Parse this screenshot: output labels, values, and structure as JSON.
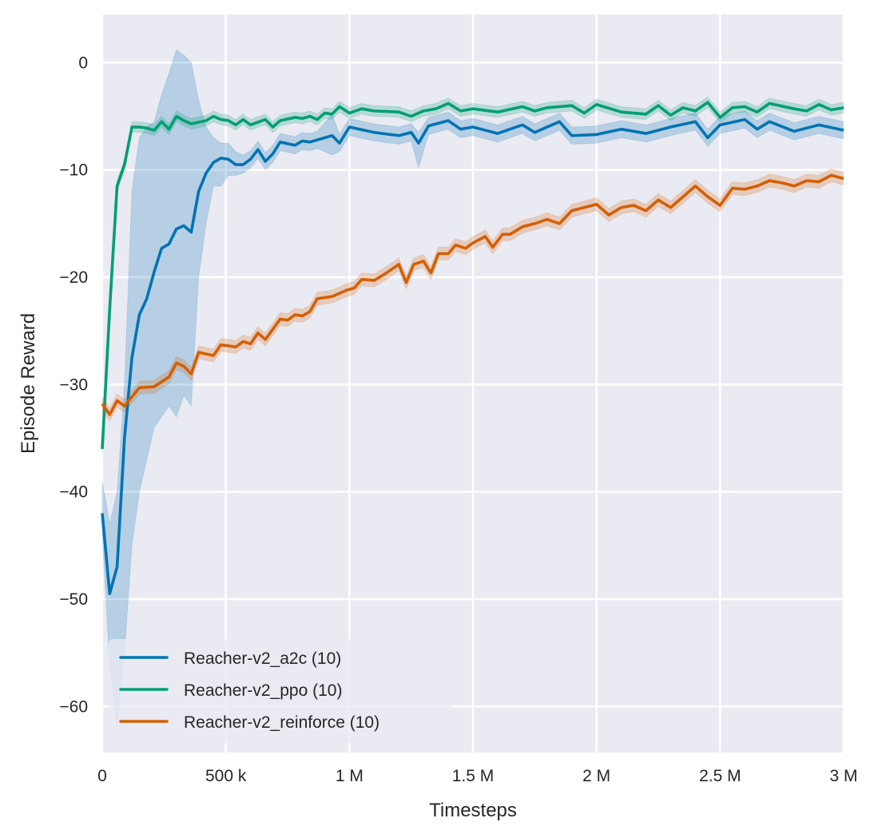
{
  "chart_data": {
    "type": "line",
    "title": "",
    "xlabel": "Timesteps",
    "ylabel": "Episode Reward",
    "xlim": [
      0,
      3000000
    ],
    "ylim": [
      -64.3,
      4.5
    ],
    "grid": true,
    "background": "#eaeaf2",
    "legend_placement": "lower-left",
    "xticks": [
      {
        "value": 0,
        "label": "0"
      },
      {
        "value": 500000,
        "label": "500 k"
      },
      {
        "value": 1000000,
        "label": "1 M"
      },
      {
        "value": 1500000,
        "label": "1.5 M"
      },
      {
        "value": 2000000,
        "label": "2 M"
      },
      {
        "value": 2500000,
        "label": "2.5 M"
      },
      {
        "value": 3000000,
        "label": "3 M"
      }
    ],
    "yticks": [
      {
        "value": 0,
        "label": "0"
      },
      {
        "value": -10,
        "label": "−10"
      },
      {
        "value": -20,
        "label": "−20"
      },
      {
        "value": -30,
        "label": "−30"
      },
      {
        "value": -40,
        "label": "−40"
      },
      {
        "value": -50,
        "label": "−50"
      },
      {
        "value": -60,
        "label": "−60"
      }
    ],
    "series": [
      {
        "name": "Reacher-v2_a2c (10)",
        "color": "#0173b2",
        "x": [
          0,
          30000,
          60000,
          90000,
          120000,
          150000,
          180000,
          210000,
          240000,
          270000,
          300000,
          330000,
          360000,
          390000,
          420000,
          450000,
          480000,
          510000,
          540000,
          570000,
          600000,
          630000,
          660000,
          690000,
          720000,
          780000,
          810000,
          840000,
          870000,
          930000,
          960000,
          1000000,
          1100000,
          1200000,
          1250000,
          1280000,
          1320000,
          1400000,
          1450000,
          1500000,
          1600000,
          1700000,
          1750000,
          1850000,
          1900000,
          2000000,
          2100000,
          2200000,
          2300000,
          2400000,
          2450000,
          2500000,
          2600000,
          2650000,
          2700000,
          2800000,
          2900000,
          3000000
        ],
        "y": [
          -42,
          -49.5,
          -47,
          -35,
          -27.5,
          -23.5,
          -22,
          -19.5,
          -17.3,
          -16.9,
          -15.5,
          -15.2,
          -15.8,
          -12,
          -10.3,
          -9.3,
          -8.9,
          -9,
          -9.5,
          -9.5,
          -9,
          -8.1,
          -9.2,
          -8.5,
          -7.4,
          -7.7,
          -7.3,
          -7.4,
          -7.2,
          -6.8,
          -7.5,
          -6,
          -6.5,
          -6.8,
          -6.5,
          -7.5,
          -5.9,
          -5.4,
          -6.2,
          -6,
          -6.6,
          -5.8,
          -6.5,
          -5.5,
          -6.8,
          -6.7,
          -6.2,
          -6.6,
          -6,
          -5.5,
          -7,
          -5.8,
          -5.3,
          -6.2,
          -5.5,
          -6.4,
          -5.8,
          -6.3
        ],
        "lower": [
          -44,
          -56,
          -62,
          -55,
          -45,
          -40,
          -37,
          -34,
          -33,
          -32,
          -33,
          -31,
          -32,
          -20,
          -15,
          -11.5,
          -11.5,
          -10.5,
          -10.5,
          -10.3,
          -9.8,
          -8.9,
          -10,
          -9.3,
          -8.2,
          -8.5,
          -8.1,
          -8.2,
          -8,
          -8.6,
          -8.3,
          -6.8,
          -7.3,
          -7.6,
          -7.3,
          -9.8,
          -6.7,
          -6.2,
          -7,
          -6.8,
          -7.4,
          -6.6,
          -7.3,
          -6.3,
          -7.6,
          -7.5,
          -7,
          -7.4,
          -6.8,
          -6.3,
          -7.8,
          -6.6,
          -6.1,
          -7,
          -6.3,
          -7.2,
          -6.6,
          -7.1
        ],
        "upper": [
          -39,
          -43,
          -40,
          -30,
          -12,
          -7,
          -6,
          -5.5,
          -3,
          -1,
          1.2,
          0.7,
          0,
          -3.5,
          -6,
          -7,
          -7.5,
          -7.5,
          -8.3,
          -8.6,
          -8.2,
          -7.3,
          -8.4,
          -7.7,
          -6.6,
          -6.9,
          -6.5,
          -6.6,
          -6.4,
          -4.8,
          -6.7,
          -5.2,
          -5.7,
          -6,
          -5.7,
          -6.5,
          -5.1,
          -4.6,
          -5.4,
          -5.2,
          -5.8,
          -5,
          -5.7,
          -4.7,
          -6,
          -5.9,
          -5.4,
          -5.8,
          -5.2,
          -4.7,
          -6.2,
          -5,
          -4.5,
          -5.4,
          -4.7,
          -5.6,
          -5,
          -5.5
        ]
      },
      {
        "name": "Reacher-v2_ppo (10)",
        "color": "#029e73",
        "ci_halfwidth": 0.5,
        "x": [
          0,
          30000,
          60000,
          90000,
          120000,
          150000,
          180000,
          210000,
          240000,
          270000,
          300000,
          330000,
          360000,
          420000,
          450000,
          480000,
          510000,
          540000,
          570000,
          600000,
          660000,
          690000,
          720000,
          780000,
          810000,
          840000,
          870000,
          900000,
          930000,
          960000,
          1000000,
          1050000,
          1100000,
          1200000,
          1250000,
          1300000,
          1350000,
          1400000,
          1450000,
          1500000,
          1600000,
          1700000,
          1750000,
          1800000,
          1900000,
          1950000,
          2000000,
          2100000,
          2200000,
          2250000,
          2300000,
          2350000,
          2400000,
          2450000,
          2500000,
          2550000,
          2600000,
          2650000,
          2700000,
          2800000,
          2850000,
          2900000,
          2950000,
          3000000
        ],
        "y": [
          -36,
          -23,
          -11.5,
          -9.5,
          -6,
          -6,
          -6.1,
          -6.3,
          -5.5,
          -6.2,
          -5,
          -5.4,
          -5.7,
          -5.4,
          -5,
          -5.3,
          -5.4,
          -5.8,
          -5.3,
          -5.8,
          -5.3,
          -6,
          -5.4,
          -5.1,
          -5.2,
          -5,
          -5.3,
          -4.7,
          -4.8,
          -4.1,
          -4.7,
          -4.3,
          -4.5,
          -4.6,
          -5,
          -4.5,
          -4.3,
          -3.8,
          -4.5,
          -4.3,
          -4.6,
          -4.1,
          -4.5,
          -4.2,
          -4,
          -4.7,
          -3.9,
          -4.6,
          -4.8,
          -4,
          -4.9,
          -4.2,
          -4.5,
          -3.7,
          -5.1,
          -4.2,
          -4.1,
          -4.6,
          -3.8,
          -4.3,
          -4.5,
          -3.9,
          -4.4,
          -4.2
        ]
      },
      {
        "name": "Reacher-v2_reinforce (10)",
        "color": "#d55e00",
        "ci_halfwidth": 0.6,
        "x": [
          0,
          30000,
          60000,
          90000,
          150000,
          210000,
          270000,
          300000,
          330000,
          360000,
          390000,
          450000,
          480000,
          540000,
          570000,
          600000,
          630000,
          660000,
          720000,
          750000,
          780000,
          810000,
          840000,
          870000,
          930000,
          990000,
          1020000,
          1050000,
          1100000,
          1150000,
          1200000,
          1230000,
          1260000,
          1300000,
          1330000,
          1360000,
          1400000,
          1430000,
          1470000,
          1500000,
          1550000,
          1580000,
          1620000,
          1650000,
          1700000,
          1750000,
          1800000,
          1850000,
          1900000,
          1950000,
          2000000,
          2050000,
          2100000,
          2150000,
          2200000,
          2250000,
          2300000,
          2350000,
          2400000,
          2450000,
          2500000,
          2550000,
          2600000,
          2650000,
          2700000,
          2750000,
          2800000,
          2850000,
          2900000,
          2950000,
          3000000
        ],
        "y": [
          -31.8,
          -32.8,
          -31.5,
          -32,
          -30.3,
          -30.2,
          -29.3,
          -28,
          -28.3,
          -29,
          -27,
          -27.3,
          -26.3,
          -26.5,
          -26,
          -26.2,
          -25.2,
          -25.8,
          -23.9,
          -24,
          -23.5,
          -23.6,
          -23.2,
          -22,
          -21.8,
          -21.2,
          -21,
          -20.2,
          -20.3,
          -19.6,
          -18.8,
          -20.5,
          -18.8,
          -18.5,
          -19.6,
          -17.8,
          -17.8,
          -17,
          -17.3,
          -16.8,
          -16.2,
          -17.2,
          -16,
          -16,
          -15.3,
          -15,
          -14.6,
          -15,
          -13.8,
          -13.5,
          -13.2,
          -14.2,
          -13.5,
          -13.3,
          -13.8,
          -12.8,
          -13.5,
          -12.5,
          -11.5,
          -12.5,
          -13.3,
          -11.7,
          -11.8,
          -11.5,
          -11,
          -11.2,
          -11.5,
          -11,
          -11.1,
          -10.5,
          -10.8
        ]
      }
    ]
  }
}
